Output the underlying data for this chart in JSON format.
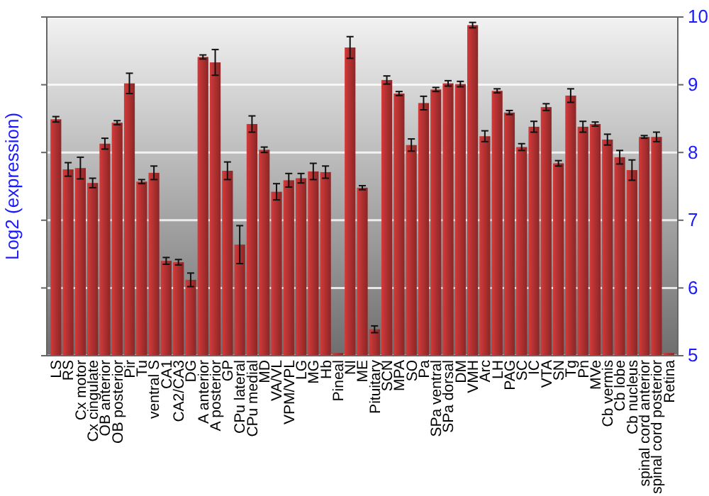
{
  "chart_data": {
    "type": "bar",
    "ylabel": "Log2 (expression)",
    "categories": [
      "LS",
      "RS",
      "Cx motor",
      "Cx cingulate",
      "OB anterior",
      "OB posterior",
      "Pir",
      "Tu",
      "ventral S",
      "CA1",
      "CA2/CA3",
      "DG",
      "A anterior",
      "A posterior",
      "GP",
      "CPu lateral",
      "CPu medial",
      "MD",
      "VA/VL",
      "VPM/VPL",
      "LG",
      "MG",
      "Hb",
      "Pineal",
      "NI",
      "ME",
      "Pituitary",
      "SCN",
      "MPA",
      "SO",
      "Pa",
      "SPa ventral",
      "SPa dorsal",
      "DM",
      "VMH",
      "Arc",
      "LH",
      "PAG",
      "SC",
      "IC",
      "VTA",
      "SN",
      "Tg",
      "Pn",
      "MVe",
      "Cb vermis",
      "Cb lobe",
      "Cb nucleus",
      "spinal cord anterior",
      "spinal cord posterior",
      "Retina"
    ],
    "values": [
      8.49,
      7.75,
      7.77,
      7.55,
      8.13,
      8.44,
      9.02,
      7.57,
      7.7,
      6.4,
      6.38,
      6.12,
      9.41,
      9.33,
      7.73,
      6.64,
      8.42,
      8.04,
      7.42,
      7.59,
      7.62,
      7.72,
      7.71,
      5.04,
      9.55,
      7.48,
      5.39,
      9.07,
      8.87,
      8.11,
      8.73,
      8.93,
      9.02,
      9.01,
      9.88,
      8.24,
      8.91,
      8.59,
      8.08,
      8.38,
      8.67,
      7.84,
      8.84,
      8.38,
      8.42,
      8.19,
      7.93,
      7.74,
      8.23,
      8.23,
      5.04
    ],
    "errors": [
      0.04,
      0.1,
      0.16,
      0.07,
      0.08,
      0.03,
      0.15,
      0.03,
      0.1,
      0.05,
      0.04,
      0.1,
      0.03,
      0.19,
      0.13,
      0.28,
      0.12,
      0.04,
      0.12,
      0.1,
      0.07,
      0.12,
      0.09,
      null,
      0.16,
      0.03,
      0.05,
      0.06,
      0.03,
      0.09,
      0.1,
      0.03,
      0.04,
      0.04,
      0.04,
      0.08,
      0.03,
      0.03,
      0.05,
      0.08,
      0.05,
      0.04,
      0.1,
      0.08,
      0.03,
      0.08,
      0.1,
      0.15,
      0.02,
      0.07,
      null
    ],
    "color": "#b83232",
    "ylim": [
      5,
      10
    ],
    "yticks": [
      5,
      6,
      7,
      8,
      9,
      10
    ],
    "grid": "y"
  }
}
